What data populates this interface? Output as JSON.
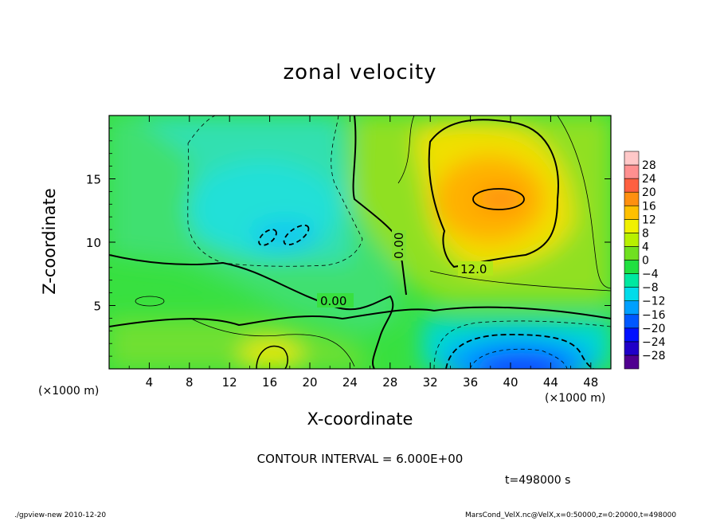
{
  "footer": {
    "left": "./gpview-new  2010-12-20",
    "right": "MarsCond_VelX.nc@VelX,x=0:50000,z=0:20000,t=498000"
  },
  "annotations": {
    "contour_interval": "CONTOUR INTERVAL = 6.000E+00",
    "time": "t=498000 s",
    "x_unit_left": "(×1000 m)",
    "x_unit_right": "(×1000 m)",
    "contour_labels": [
      "0.00",
      "0.00",
      "12.0"
    ]
  },
  "chart_data": {
    "type": "heatmap",
    "title": "zonal velocity",
    "xlabel": "X-coordinate",
    "ylabel": "Z-coordinate",
    "xlim": [
      0,
      50
    ],
    "ylim": [
      0,
      20
    ],
    "x_ticks": [
      4,
      8,
      12,
      16,
      20,
      24,
      28,
      32,
      36,
      40,
      44,
      48
    ],
    "y_ticks": [
      5,
      10,
      15
    ],
    "colorbar": {
      "levels": [
        -28,
        -24,
        -20,
        -16,
        -12,
        -8,
        -4,
        0,
        4,
        8,
        12,
        16,
        20,
        24,
        28
      ],
      "tick_labels": [
        "28",
        "24",
        "20",
        "16",
        "12",
        "8",
        "4",
        "0",
        "−4",
        "−8",
        "−12",
        "−16",
        "−20",
        "−24",
        "−28"
      ],
      "colors": [
        "#500090",
        "#2000c8",
        "#0010ff",
        "#0058ff",
        "#00a0ff",
        "#00dcea",
        "#00e8a0",
        "#20e040",
        "#70e020",
        "#b8f000",
        "#f0f000",
        "#ffc000",
        "#ff9010",
        "#ff6040",
        "#ff9090",
        "#ffc8c8"
      ]
    },
    "features": [
      {
        "kind": "max",
        "x": 39,
        "z": 13.5,
        "value": 18
      },
      {
        "kind": "min",
        "x": 41,
        "z": 1.0,
        "value": -22
      },
      {
        "kind": "min",
        "x": 18,
        "z": 11.0,
        "value": -12
      },
      {
        "kind": "max",
        "x": 16,
        "z": 1.0,
        "value": 12
      }
    ]
  }
}
